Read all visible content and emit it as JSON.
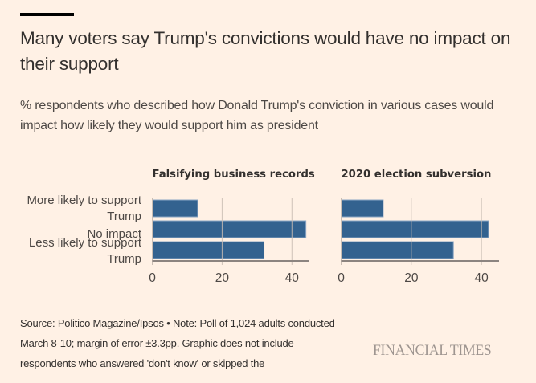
{
  "header": {
    "title": "Many voters say Trump's convictions would have no impact on their support",
    "subtitle": "% respondents who described how Donald Trump's conviction in various cases would impact how likely they would support him as president"
  },
  "colors": {
    "background": "#fff1e5",
    "bar": "#33628f",
    "bar_border": "#8aa5c4",
    "gridline": "#c9bdb3",
    "axis": "#8c8480",
    "text": "#33302e",
    "logo": "#9e9590"
  },
  "chart_data": [
    {
      "type": "bar",
      "orientation": "horizontal",
      "title": "Falsifying business records",
      "categories": [
        "More likely to support Trump",
        "No impact",
        "Less likely to support Trump"
      ],
      "category_label_lines": [
        [
          "More likely to support",
          "Trump"
        ],
        [
          "No impact"
        ],
        [
          "Less likely to support",
          "Trump"
        ]
      ],
      "values": [
        13,
        44,
        32
      ],
      "xlim": [
        0,
        45
      ],
      "xticks": [
        0,
        20,
        40
      ],
      "xtick_labels": [
        "0",
        "20",
        "40"
      ],
      "grid": true,
      "xlabel": "",
      "ylabel": "",
      "unit": "%"
    },
    {
      "type": "bar",
      "orientation": "horizontal",
      "title": "2020 election subversion",
      "categories": [
        "More likely to support Trump",
        "No impact",
        "Less likely to support Trump"
      ],
      "values": [
        12,
        42,
        32
      ],
      "xlim": [
        0,
        45
      ],
      "xticks": [
        0,
        20,
        40
      ],
      "xtick_labels": [
        "0",
        "20",
        "40"
      ],
      "grid": true,
      "xlabel": "",
      "ylabel": "",
      "unit": "%"
    }
  ],
  "footer": {
    "source_prefix": "Source: ",
    "source_link": "Politico Magazine/Ipsos",
    "note": " • Note: Poll of 1,024 adults conducted March 8-10; margin of error ±3.3pp. Graphic does not include respondents who answered 'don't know' or skipped the",
    "logo": "FINANCIAL TIMES"
  }
}
